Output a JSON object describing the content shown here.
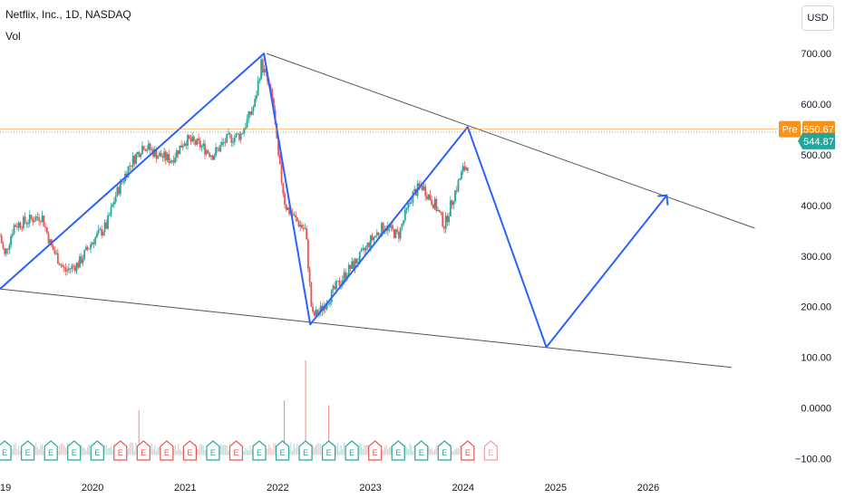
{
  "header": {
    "title": "Netflix, Inc., 1D, NASDAQ",
    "volume_label": "Vol"
  },
  "currency_button": "USD",
  "chart_data": {
    "type": "candlestick",
    "symbol": "Netflix, Inc.",
    "interval": "1D",
    "exchange": "NASDAQ",
    "y_axis": {
      "ticks": [
        "700.00",
        "600.00",
        "500.00",
        "400.00",
        "300.00",
        "200.00",
        "100.00",
        "0.0000",
        "−100.00"
      ],
      "tick_values": [
        700,
        600,
        500,
        400,
        300,
        200,
        100,
        0,
        -100
      ],
      "range": [
        -110,
        770
      ]
    },
    "x_axis": {
      "ticks": [
        "2019",
        "2020",
        "2021",
        "2022",
        "2023",
        "2024",
        "2025",
        "2026"
      ],
      "tick_values": [
        2019,
        2020,
        2021,
        2022,
        2023,
        2024,
        2025,
        2026
      ],
      "range": [
        2019.0,
        2027.4
      ]
    },
    "price_path": [
      [
        2019.0,
        340
      ],
      [
        2019.05,
        300
      ],
      [
        2019.15,
        360
      ],
      [
        2019.3,
        370
      ],
      [
        2019.45,
        380
      ],
      [
        2019.55,
        320
      ],
      [
        2019.7,
        270
      ],
      [
        2019.85,
        285
      ],
      [
        2020.0,
        330
      ],
      [
        2020.15,
        360
      ],
      [
        2020.25,
        420
      ],
      [
        2020.4,
        480
      ],
      [
        2020.55,
        520
      ],
      [
        2020.7,
        500
      ],
      [
        2020.85,
        490
      ],
      [
        2021.0,
        530
      ],
      [
        2021.15,
        520
      ],
      [
        2021.3,
        500
      ],
      [
        2021.45,
        530
      ],
      [
        2021.6,
        540
      ],
      [
        2021.75,
        600
      ],
      [
        2021.82,
        680
      ],
      [
        2021.88,
        650
      ],
      [
        2021.95,
        600
      ],
      [
        2022.0,
        500
      ],
      [
        2022.08,
        400
      ],
      [
        2022.2,
        370
      ],
      [
        2022.3,
        350
      ],
      [
        2022.37,
        180
      ],
      [
        2022.45,
        190
      ],
      [
        2022.6,
        230
      ],
      [
        2022.75,
        270
      ],
      [
        2022.9,
        300
      ],
      [
        2023.0,
        330
      ],
      [
        2023.15,
        360
      ],
      [
        2023.3,
        340
      ],
      [
        2023.45,
        420
      ],
      [
        2023.55,
        440
      ],
      [
        2023.7,
        400
      ],
      [
        2023.8,
        360
      ],
      [
        2023.9,
        420
      ],
      [
        2024.0,
        470
      ],
      [
        2024.05,
        480
      ]
    ],
    "volume": {
      "baseline": 0,
      "spikes": [
        {
          "x": 2020.5,
          "value": 45
        },
        {
          "x": 2022.07,
          "value": 55
        },
        {
          "x": 2022.3,
          "value": 95
        },
        {
          "x": 2022.55,
          "value": 50
        }
      ]
    },
    "annotations": {
      "upper_trendline": [
        [
          2021.88,
          700
        ],
        [
          2027.15,
          355
        ]
      ],
      "lower_trendline": [
        [
          2019.0,
          235
        ],
        [
          2026.9,
          80
        ]
      ],
      "projection_path": [
        [
          2019.0,
          235
        ],
        [
          2021.85,
          700
        ],
        [
          2022.35,
          165
        ],
        [
          2024.05,
          555
        ],
        [
          2024.9,
          120
        ],
        [
          2026.2,
          420
        ]
      ],
      "trend_color": "#555555",
      "projection_color": "#2962ff"
    },
    "price_lines": {
      "pre_market": {
        "label": "Pre",
        "value": 550.67,
        "display": "550.67",
        "color": "#f7931a"
      },
      "last": {
        "value": 544.87,
        "display": "544.87",
        "color": "#26a69a"
      }
    },
    "earnings_markers": {
      "label": "E",
      "items": [
        {
          "x": 2019.05,
          "outcome": "beat"
        },
        {
          "x": 2019.3,
          "outcome": "beat"
        },
        {
          "x": 2019.55,
          "outcome": "beat"
        },
        {
          "x": 2019.8,
          "outcome": "beat"
        },
        {
          "x": 2020.05,
          "outcome": "beat"
        },
        {
          "x": 2020.3,
          "outcome": "miss"
        },
        {
          "x": 2020.55,
          "outcome": "miss"
        },
        {
          "x": 2020.8,
          "outcome": "miss"
        },
        {
          "x": 2021.05,
          "outcome": "miss"
        },
        {
          "x": 2021.3,
          "outcome": "beat"
        },
        {
          "x": 2021.55,
          "outcome": "miss"
        },
        {
          "x": 2021.8,
          "outcome": "beat"
        },
        {
          "x": 2022.05,
          "outcome": "beat"
        },
        {
          "x": 2022.3,
          "outcome": "beat"
        },
        {
          "x": 2022.55,
          "outcome": "beat"
        },
        {
          "x": 2022.8,
          "outcome": "beat"
        },
        {
          "x": 2023.05,
          "outcome": "miss"
        },
        {
          "x": 2023.3,
          "outcome": "beat"
        },
        {
          "x": 2023.55,
          "outcome": "beat"
        },
        {
          "x": 2023.8,
          "outcome": "beat"
        },
        {
          "x": 2024.05,
          "outcome": "miss"
        },
        {
          "x": 2024.3,
          "outcome": "upcoming"
        }
      ]
    },
    "colors": {
      "up": "#26a69a",
      "down": "#ef5350",
      "beat": "#26a69a",
      "miss": "#ef5350",
      "upcoming": "#f0a0a0",
      "axis_text": "#131722"
    },
    "grid": false,
    "legend": "none"
  }
}
